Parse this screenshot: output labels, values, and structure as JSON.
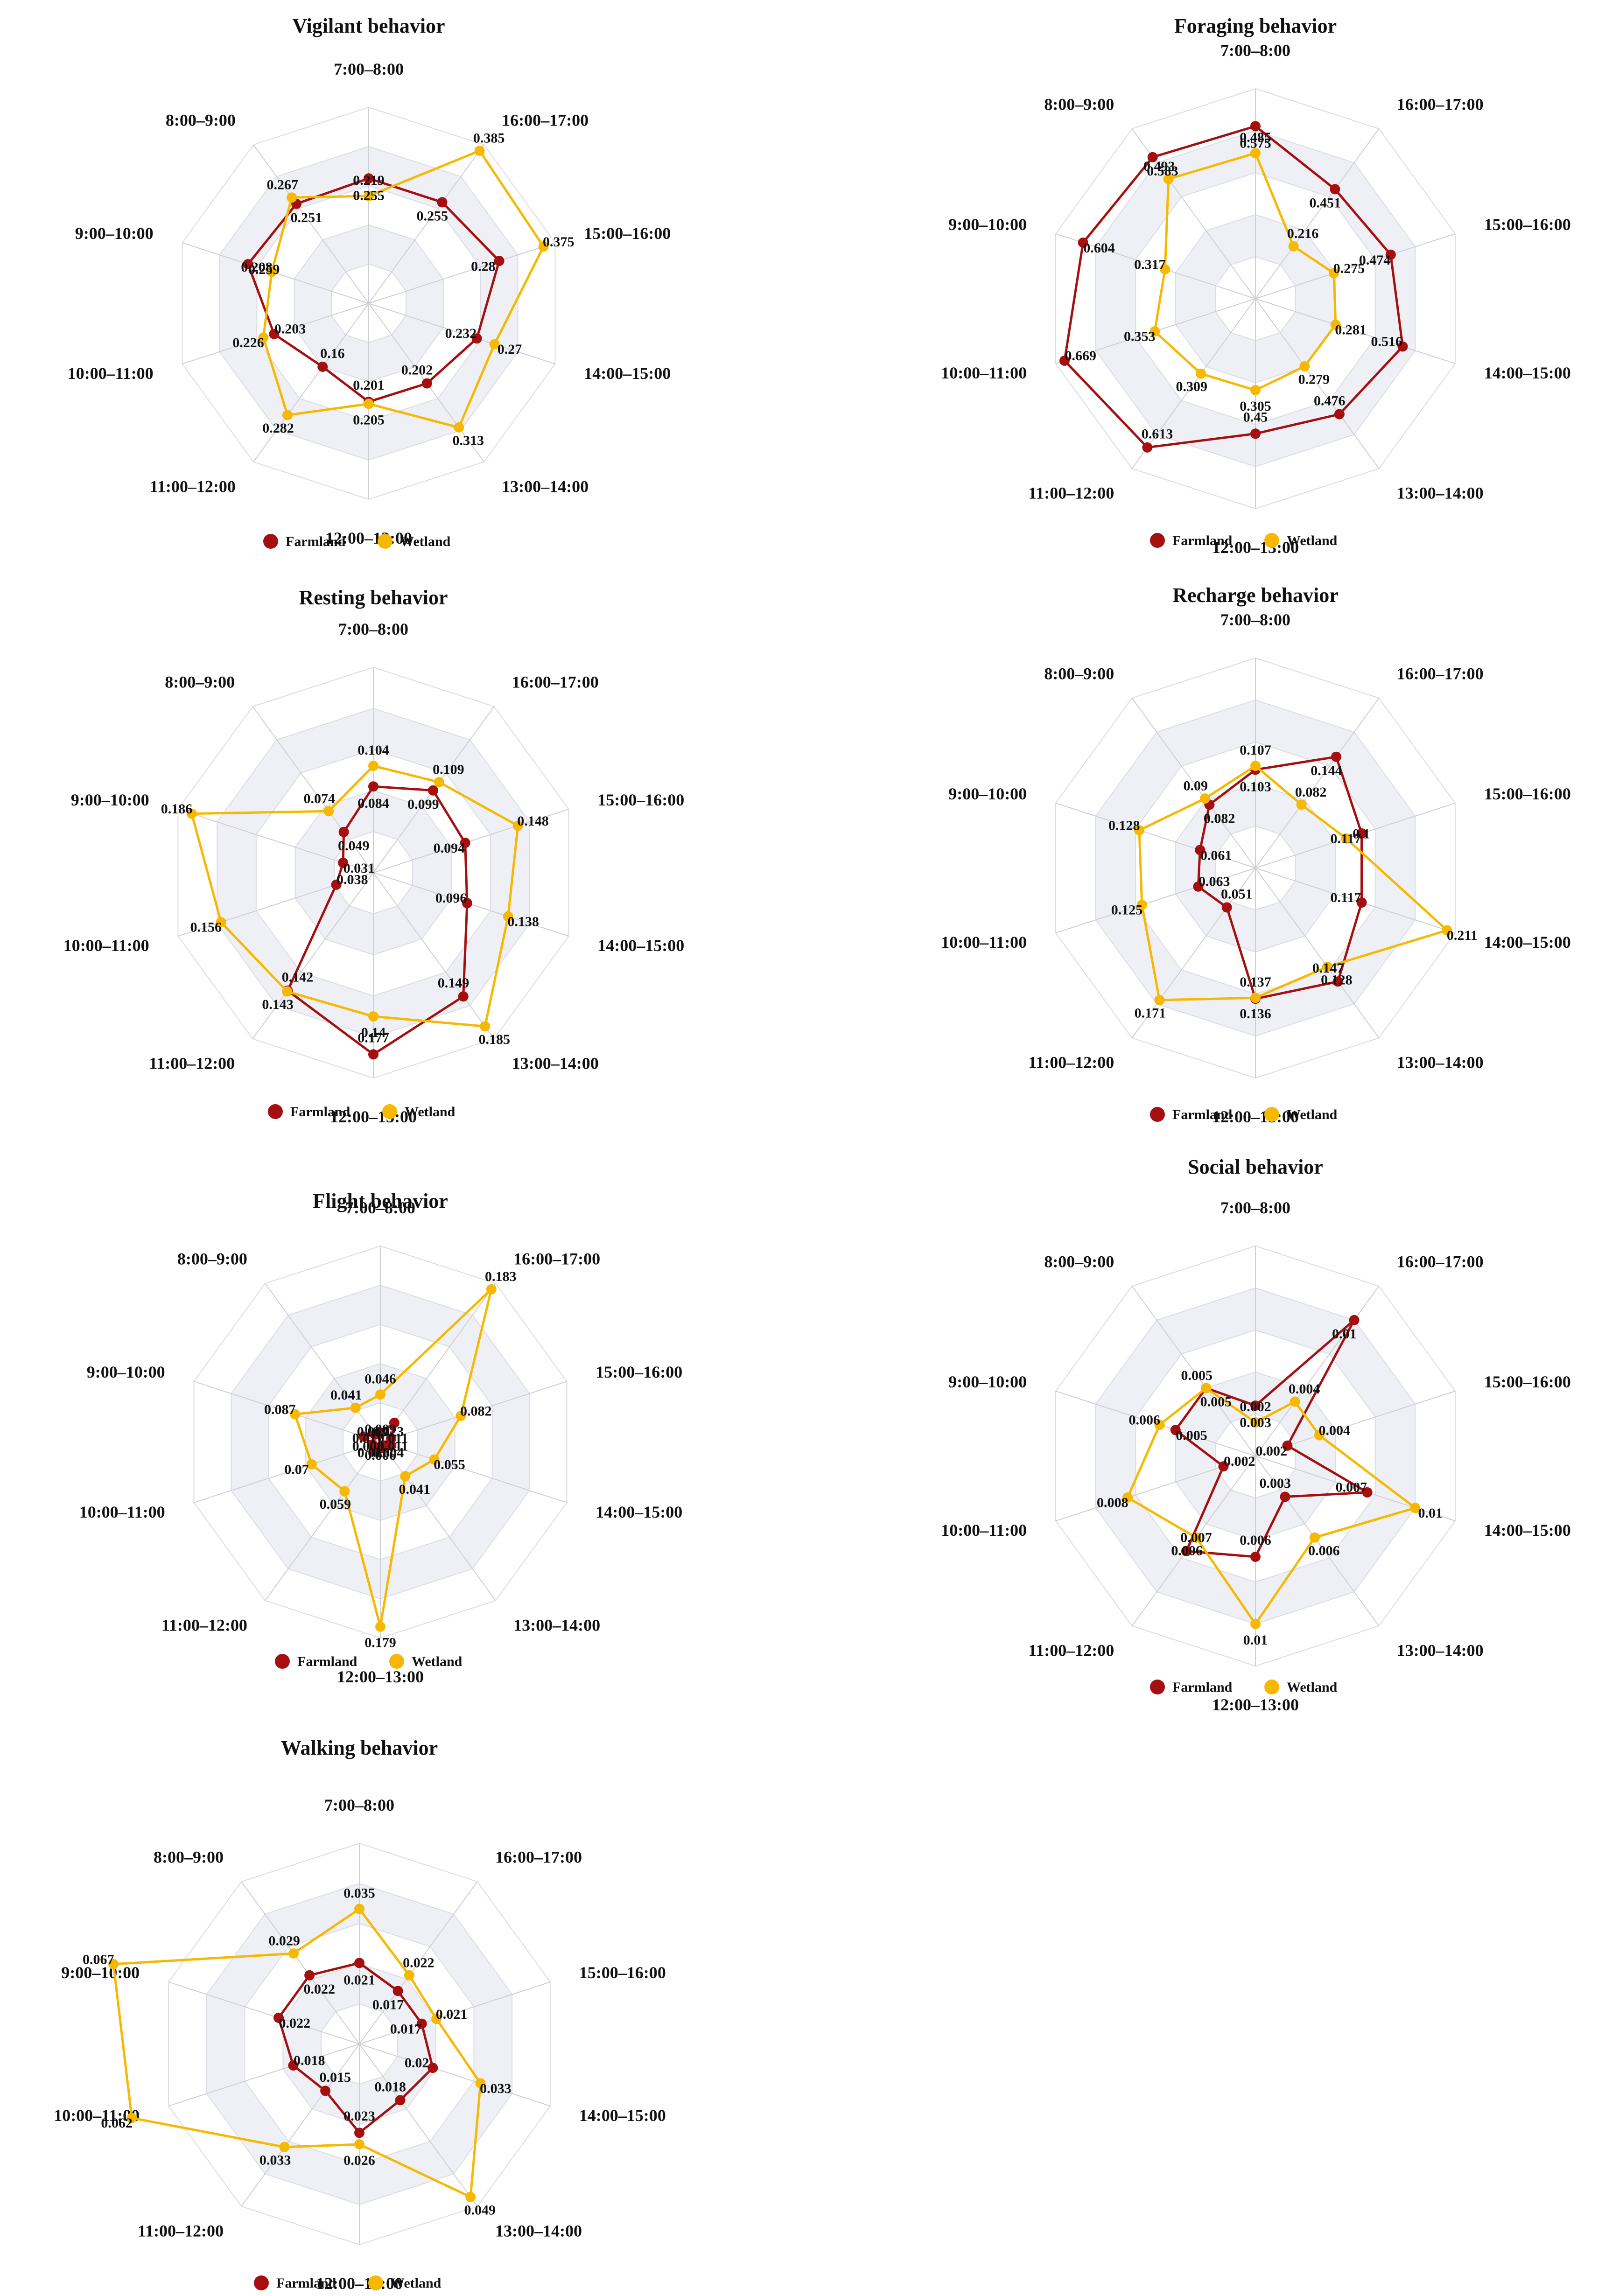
{
  "axes": [
    "7:00–8:00",
    "16:00–17:00",
    "15:00–16:00",
    "14:00–15:00",
    "13:00–14:00",
    "12:00–13:00",
    "11:00–12:00",
    "10:00–11:00",
    "9:00–10:00",
    "8:00–9:00"
  ],
  "legend": {
    "farmland": "Farmland",
    "wetland": "Wetland"
  },
  "colors": {
    "farmland": "#a50f0f",
    "wetland": "#f6b800"
  },
  "chart_data": [
    {
      "type": "radar",
      "title": "Vigilant behavior",
      "rmax": 0.4,
      "categories": [
        "7:00–8:00",
        "16:00–17:00",
        "15:00–16:00",
        "14:00–15:00",
        "13:00–14:00",
        "12:00–13:00",
        "11:00–12:00",
        "10:00–11:00",
        "9:00–10:00",
        "8:00–9:00"
      ],
      "series": [
        {
          "name": "Farmland",
          "values": [
            0.255,
            0.255,
            0.28,
            0.232,
            0.202,
            0.201,
            0.16,
            0.203,
            0.259,
            0.251
          ]
        },
        {
          "name": "Wetland",
          "values": [
            0.219,
            0.385,
            0.375,
            0.27,
            0.313,
            0.205,
            0.282,
            0.226,
            0.208,
            0.267
          ]
        }
      ]
    },
    {
      "type": "radar",
      "title": "Foraging behavior",
      "rmax": 0.7,
      "categories": [
        "7:00–8:00",
        "16:00–17:00",
        "15:00–16:00",
        "14:00–15:00",
        "13:00–14:00",
        "12:00–13:00",
        "11:00–12:00",
        "10:00–11:00",
        "9:00–10:00",
        "8:00–9:00"
      ],
      "series": [
        {
          "name": "Farmland",
          "values": [
            0.575,
            0.451,
            0.474,
            0.516,
            0.476,
            0.45,
            0.613,
            0.669,
            0.604,
            0.583
          ]
        },
        {
          "name": "Wetland",
          "values": [
            0.485,
            0.216,
            0.275,
            0.281,
            0.279,
            0.305,
            0.309,
            0.353,
            0.317,
            0.493
          ]
        }
      ]
    },
    {
      "type": "radar",
      "title": "Resting behavior",
      "rmax": 0.2,
      "categories": [
        "7:00–8:00",
        "16:00–17:00",
        "15:00–16:00",
        "14:00–15:00",
        "13:00–14:00",
        "12:00–13:00",
        "11:00–12:00",
        "10:00–11:00",
        "9:00–10:00",
        "8:00–9:00"
      ],
      "series": [
        {
          "name": "Farmland",
          "values": [
            0.084,
            0.099,
            0.094,
            0.096,
            0.149,
            0.177,
            0.142,
            0.038,
            0.031,
            0.049
          ]
        },
        {
          "name": "Wetland",
          "values": [
            0.104,
            0.109,
            0.148,
            0.138,
            0.185,
            0.14,
            0.143,
            0.156,
            0.186,
            0.074
          ]
        }
      ]
    },
    {
      "type": "radar",
      "title": "Recharge behavior",
      "rmax": 0.22,
      "categories": [
        "7:00–8:00",
        "16:00–17:00",
        "15:00–16:00",
        "14:00–15:00",
        "13:00–14:00",
        "12:00–13:00",
        "11:00–12:00",
        "10:00–11:00",
        "9:00–10:00",
        "8:00–9:00"
      ],
      "series": [
        {
          "name": "Farmland",
          "values": [
            0.103,
            0.144,
            0.117,
            0.117,
            0.147,
            0.137,
            0.051,
            0.063,
            0.061,
            0.082
          ]
        },
        {
          "name": "Wetland",
          "values": [
            0.107,
            0.082,
            0.1,
            0.211,
            0.128,
            0.136,
            0.171,
            0.125,
            0.128,
            0.09
          ]
        }
      ]
    },
    {
      "type": "radar",
      "title": "Flight behavior",
      "rmax": 0.19,
      "categories": [
        "7:00–8:00",
        "16:00–17:00",
        "15:00–16:00",
        "14:00–15:00",
        "13:00–14:00",
        "12:00–13:00",
        "11:00–12:00",
        "10:00–11:00",
        "9:00–10:00",
        "8:00–9:00"
      ],
      "series": [
        {
          "name": "Farmland",
          "values": [
            0.009,
            0.023,
            0.011,
            0.011,
            0.004,
            0.006,
            0.011,
            0.008,
            0.017,
            0.009
          ]
        },
        {
          "name": "Wetland",
          "values": [
            0.046,
            0.183,
            0.082,
            0.055,
            0.041,
            0.179,
            0.059,
            0.07,
            0.087,
            0.041
          ]
        }
      ]
    },
    {
      "type": "radar",
      "title": "Social behavior",
      "rmax": 0.0125,
      "categories": [
        "7:00–8:00",
        "16:00–17:00",
        "15:00–16:00",
        "14:00–15:00",
        "13:00–14:00",
        "12:00–13:00",
        "11:00–12:00",
        "10:00–11:00",
        "9:00–10:00",
        "8:00–9:00"
      ],
      "series": [
        {
          "name": "Farmland",
          "values": [
            0.003,
            0.01,
            0.002,
            0.007,
            0.003,
            0.006,
            0.007,
            0.002,
            0.005,
            0.005
          ]
        },
        {
          "name": "Wetland",
          "values": [
            0.002,
            0.004,
            0.004,
            0.01,
            0.006,
            0.01,
            0.006,
            0.008,
            0.006,
            0.005
          ]
        }
      ]
    },
    {
      "type": "radar",
      "title": "Walking behavior",
      "rmax": 0.052,
      "categories": [
        "7:00–8:00",
        "16:00–17:00",
        "15:00–16:00",
        "14:00–15:00",
        "13:00–14:00",
        "12:00–13:00",
        "11:00–12:00",
        "10:00–11:00",
        "9:00–10:00",
        "8:00–9:00"
      ],
      "series": [
        {
          "name": "Farmland",
          "values": [
            0.021,
            0.017,
            0.017,
            0.02,
            0.018,
            0.023,
            0.015,
            0.018,
            0.022,
            0.022
          ]
        },
        {
          "name": "Wetland",
          "values": [
            0.035,
            0.022,
            0.021,
            0.033,
            0.049,
            0.026,
            0.033,
            0.062,
            0.067,
            0.029
          ]
        }
      ]
    }
  ]
}
